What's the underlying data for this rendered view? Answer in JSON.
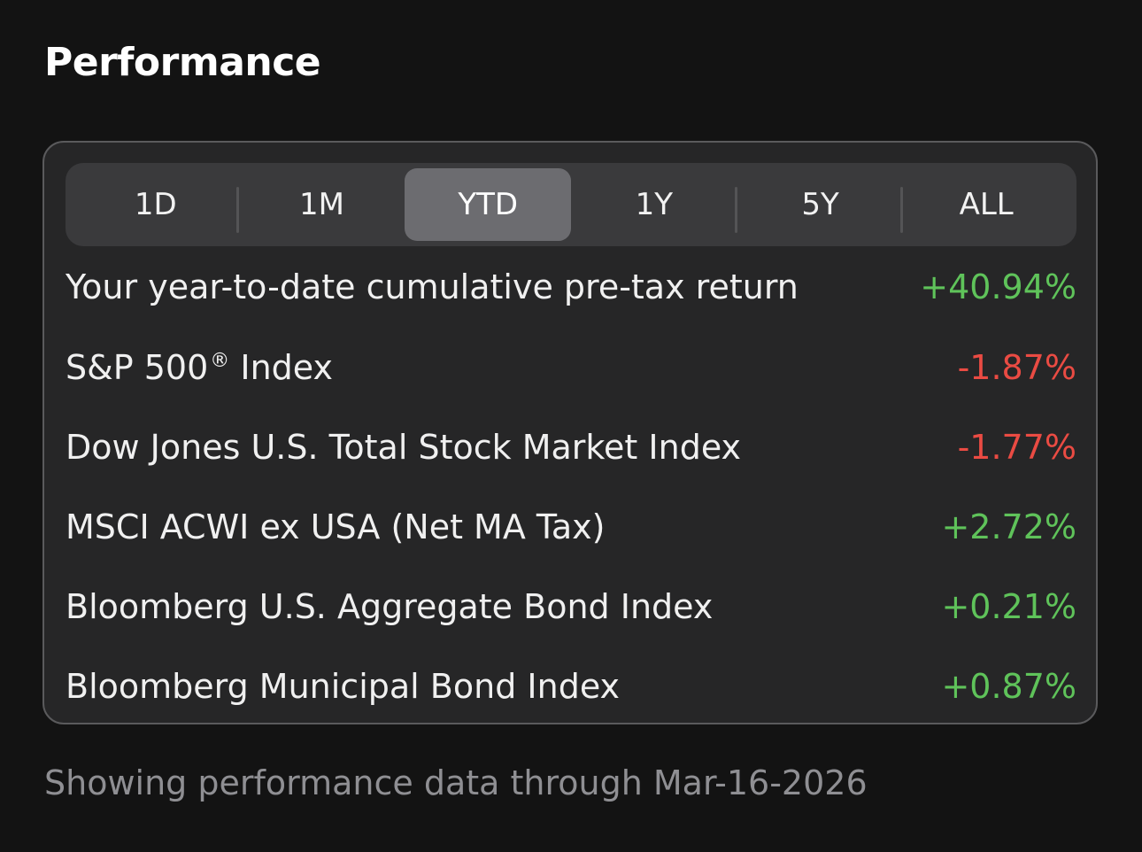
{
  "header": {
    "title": "Performance"
  },
  "period_tabs": [
    {
      "label": "1D",
      "selected": false
    },
    {
      "label": "1M",
      "selected": false
    },
    {
      "label": "YTD",
      "selected": true
    },
    {
      "label": "1Y",
      "selected": false
    },
    {
      "label": "5Y",
      "selected": false
    },
    {
      "label": "ALL",
      "selected": false
    }
  ],
  "returns": [
    {
      "label": "Your year-to-date cumulative pre-tax return",
      "value": "+40.94%",
      "direction": "positive"
    },
    {
      "label": "S&P 500",
      "label_mark": "®",
      "label_suffix": " Index",
      "value": "-1.87%",
      "direction": "negative"
    },
    {
      "label": "Dow Jones U.S. Total Stock Market Index",
      "value": "-1.77%",
      "direction": "negative"
    },
    {
      "label": "MSCI ACWI ex USA (Net MA Tax)",
      "value": "+2.72%",
      "direction": "positive"
    },
    {
      "label": "Bloomberg U.S. Aggregate Bond Index",
      "value": "+0.21%",
      "direction": "positive"
    },
    {
      "label": "Bloomberg Municipal Bond Index",
      "value": "+0.87%",
      "direction": "positive"
    }
  ],
  "footer": {
    "note": "Showing performance data through Mar-16-2026"
  },
  "colors": {
    "positive": "#5fc35a",
    "negative": "#ea4b43",
    "background": "#131313",
    "card": "#262627"
  }
}
